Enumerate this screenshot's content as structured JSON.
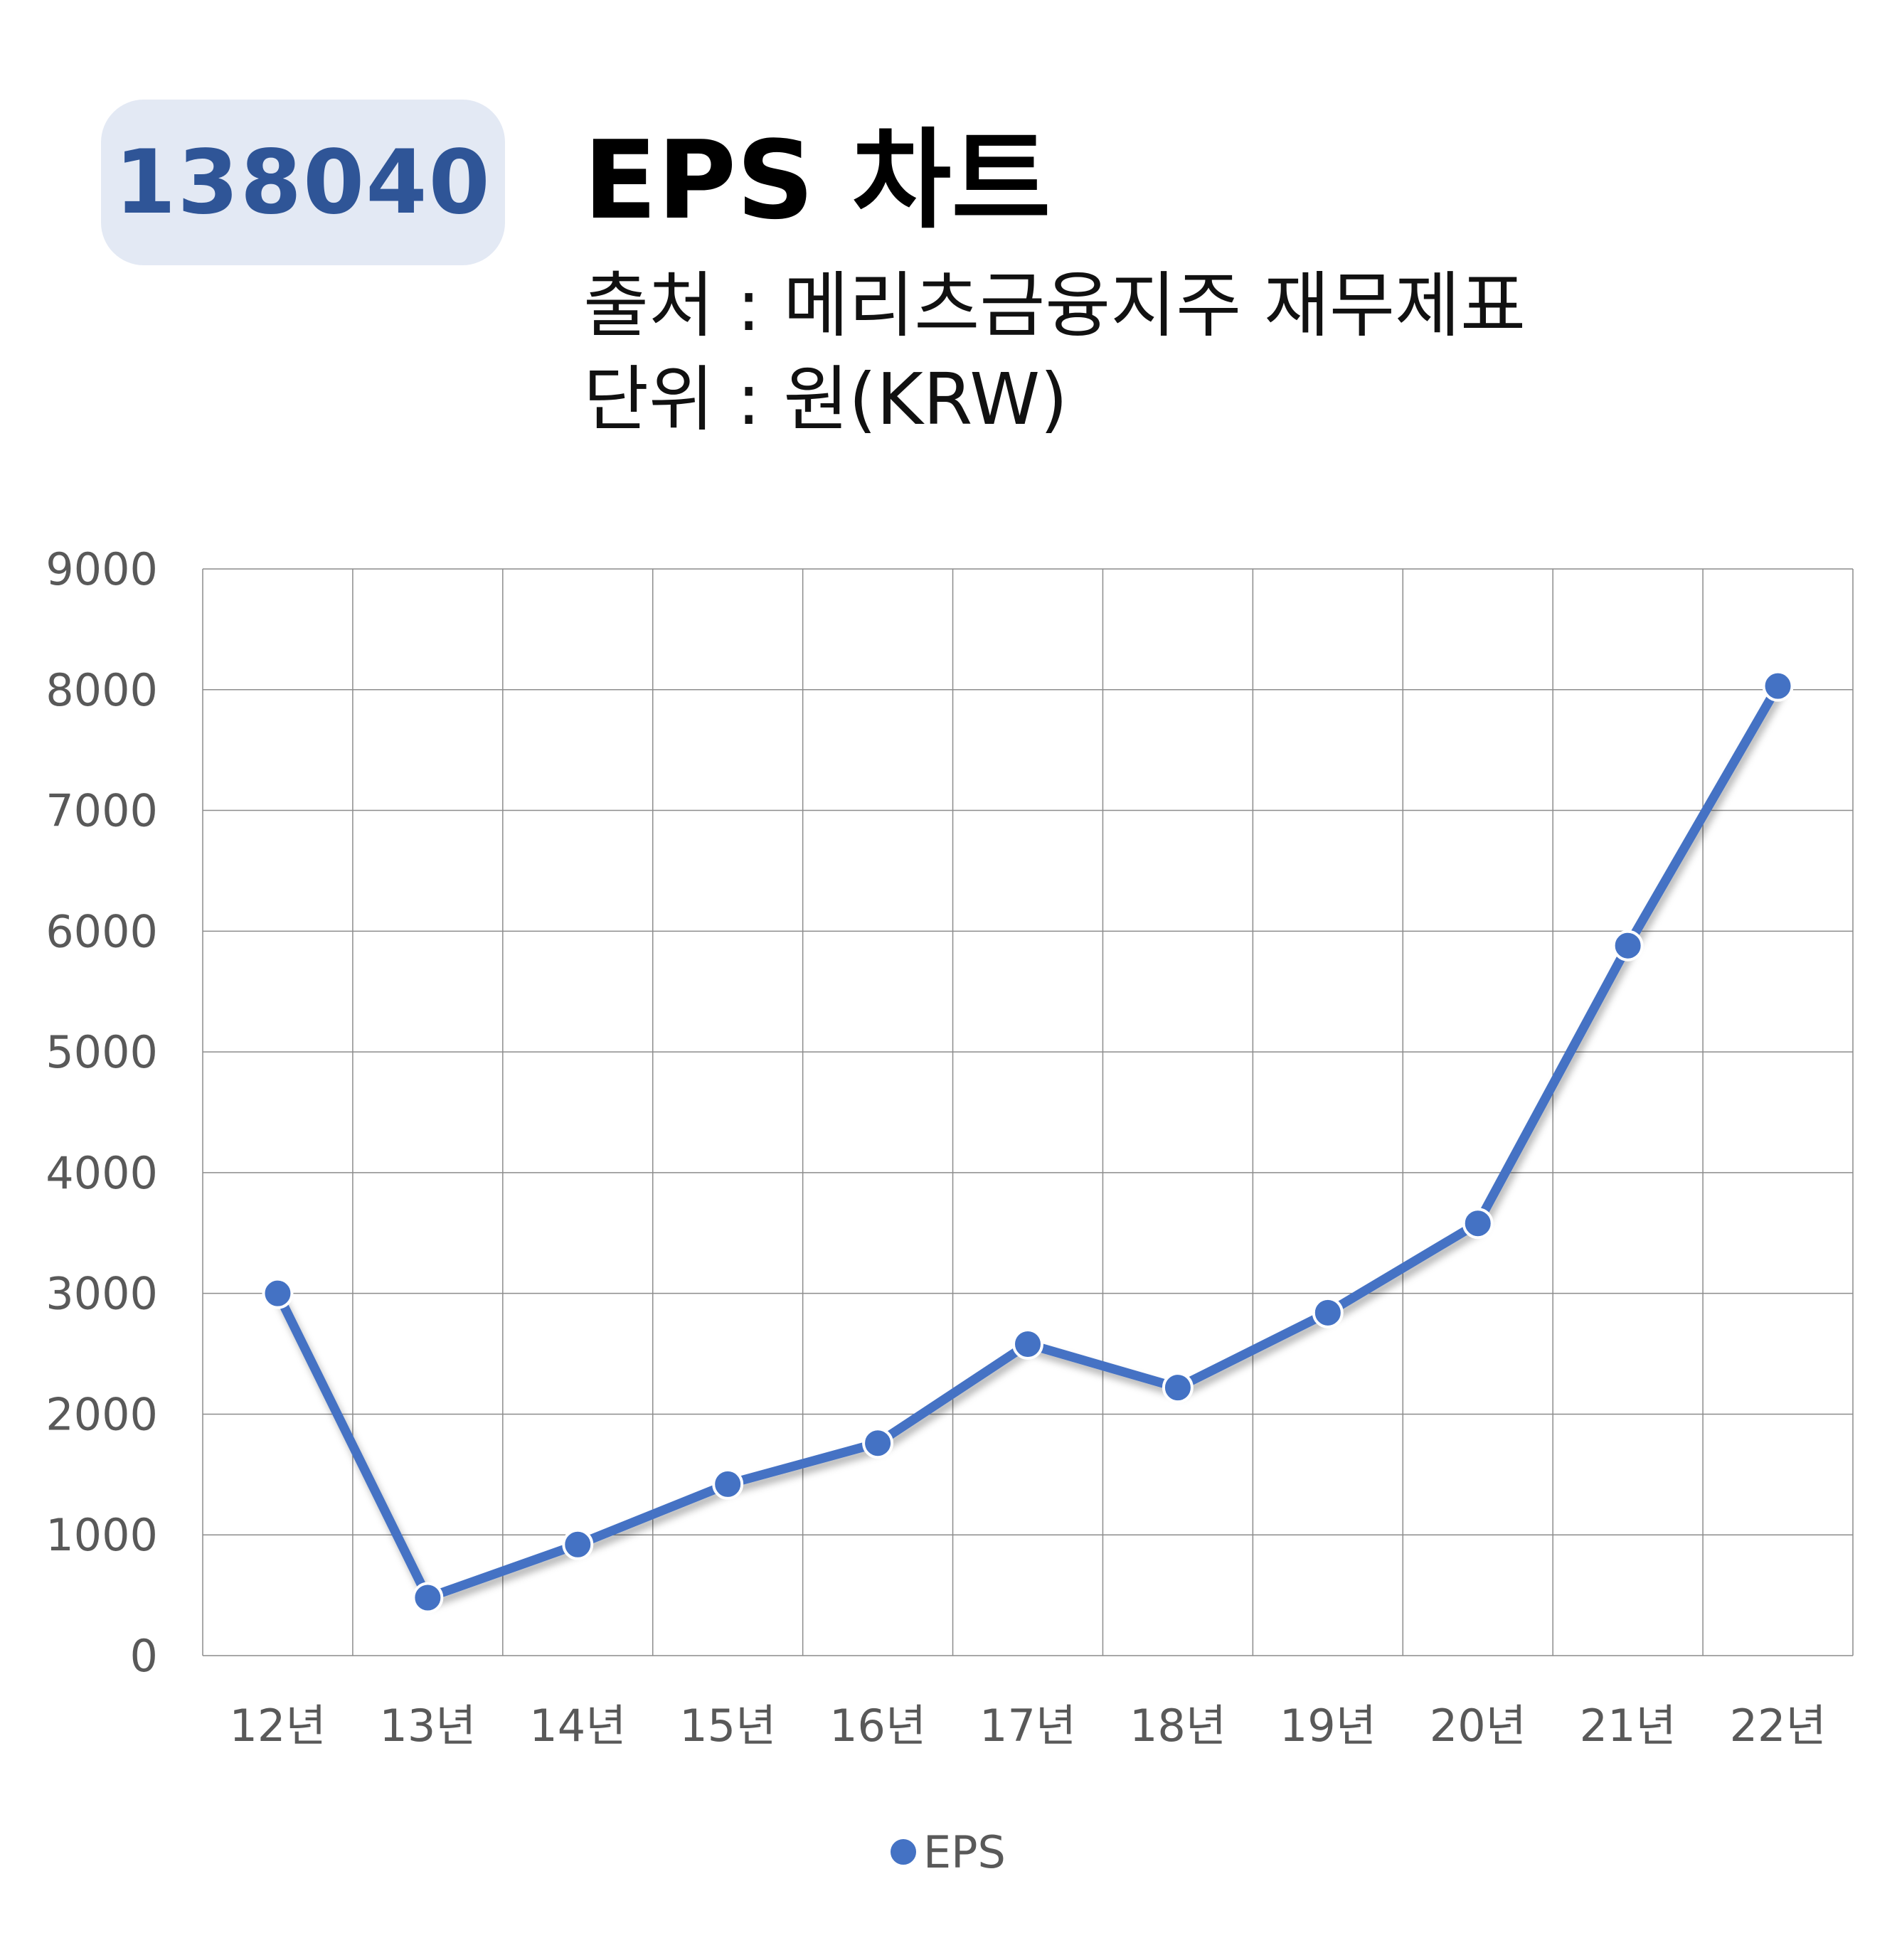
{
  "header": {
    "code": "138040",
    "title": "EPS 차트",
    "source": "출처 : 메리츠금융지주 재무제표",
    "unit": "단위 : 원(KRW)"
  },
  "colors": {
    "line": "#4472c4",
    "badge_bg": "#e3e9f4",
    "badge_text": "#2f5597",
    "grid": "#8c8c8c",
    "tick_text": "#595959"
  },
  "chart_data": {
    "type": "line",
    "categories": [
      "12년",
      "13년",
      "14년",
      "15년",
      "16년",
      "17년",
      "18년",
      "19년",
      "20년",
      "21년",
      "22년"
    ],
    "series": [
      {
        "name": "EPS",
        "values": [
          3000,
          480,
          920,
          1420,
          1760,
          2580,
          2220,
          2840,
          3580,
          5880,
          8030
        ]
      }
    ],
    "ylim": [
      0,
      9000
    ],
    "yticks": [
      0,
      1000,
      2000,
      3000,
      4000,
      5000,
      6000,
      7000,
      8000,
      9000
    ],
    "grid": true,
    "legend": "bottom-center",
    "marker": "circle"
  }
}
